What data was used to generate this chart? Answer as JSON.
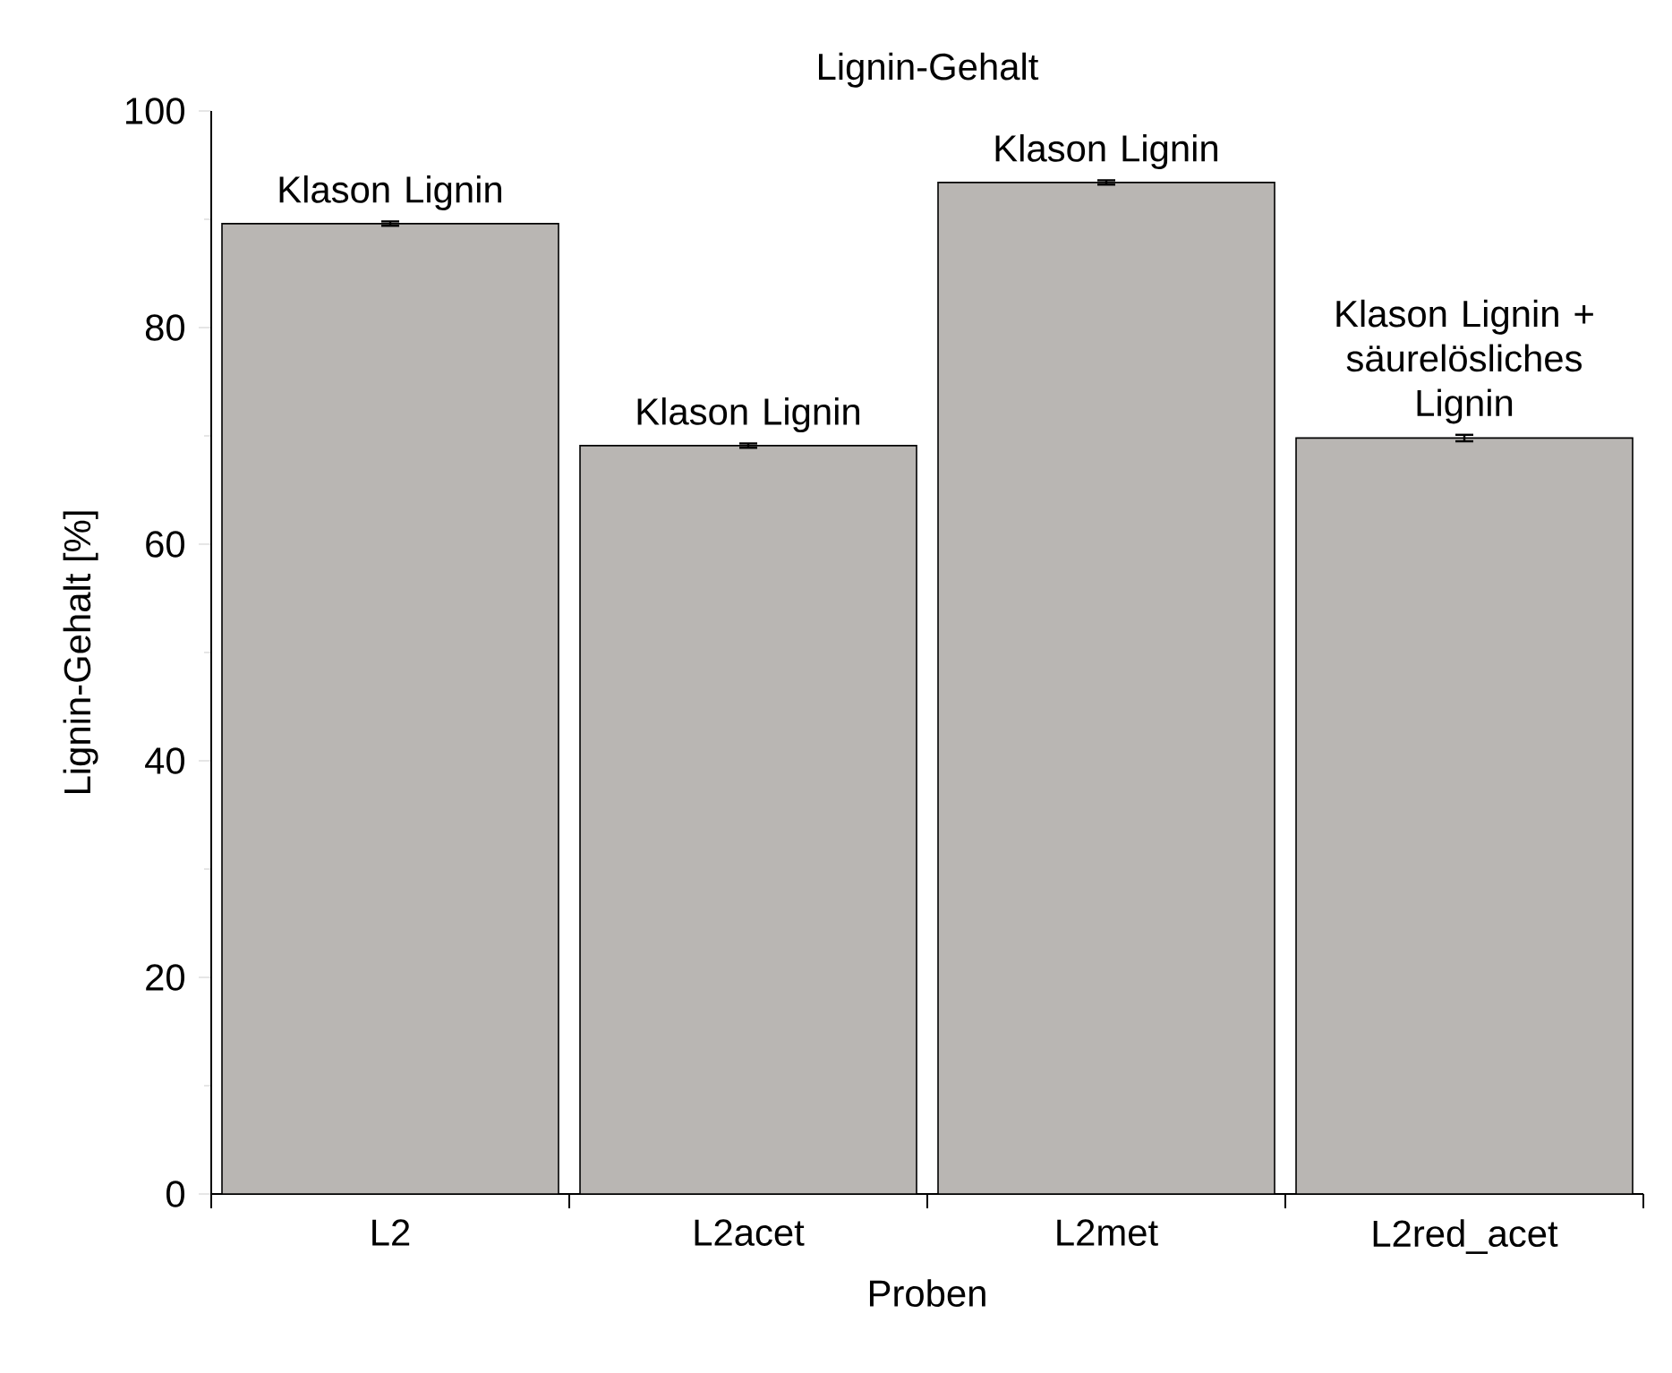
{
  "chart_data": {
    "type": "bar",
    "title": "Lignin-Gehalt",
    "xlabel": "Proben",
    "ylabel": "Lignin-Gehalt [%]",
    "categories": [
      "L2",
      "L2acet",
      "L2met",
      "L2red_acet"
    ],
    "values": [
      89.6,
      69.1,
      93.4,
      69.8
    ],
    "errors": [
      0.2,
      0.2,
      0.2,
      0.3
    ],
    "color": "#b9b6b3",
    "ylim": [
      0,
      100
    ],
    "yticks": [
      0,
      20,
      40,
      60,
      80,
      100
    ],
    "annotations": [
      {
        "text": "Klason Lignin",
        "x": "L2",
        "y": 89.6
      },
      {
        "text": "Klason Lignin",
        "x": "L2acet",
        "y": 69.1
      },
      {
        "text": "Klason Lignin",
        "x": "L2met",
        "y": 93.4
      },
      {
        "text": "Klason Lignin + säurelösliches Lignin",
        "x": "L2red_acet",
        "y": 69.8
      }
    ]
  }
}
